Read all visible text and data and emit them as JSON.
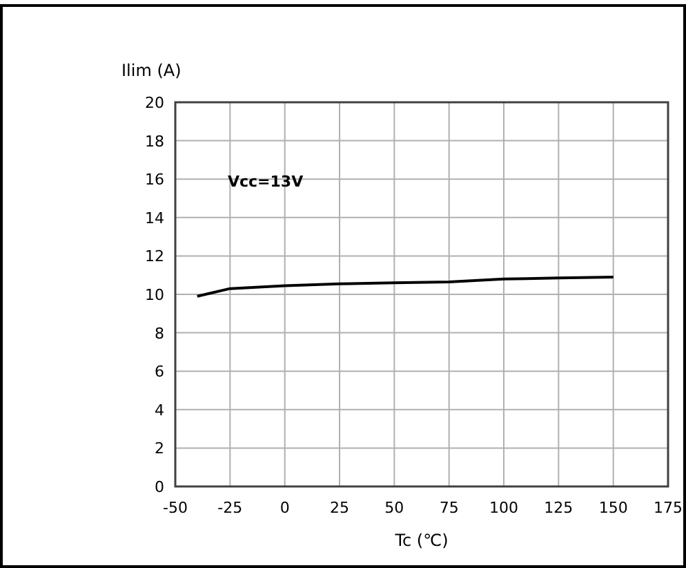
{
  "chart_data": {
    "type": "line",
    "xlabel": "Tc (℃)",
    "ylabel": "Ilim (A)",
    "annotations": [
      "Vcc=13V"
    ],
    "x": [
      -40,
      -25,
      0,
      25,
      50,
      75,
      100,
      125,
      150
    ],
    "series": [
      {
        "color": "#000000",
        "values": [
          9.9,
          10.3,
          10.45,
          10.55,
          10.6,
          10.65,
          10.8,
          10.85,
          10.9
        ]
      }
    ],
    "xlim": [
      -50,
      175
    ],
    "xticks": [
      -50,
      -25,
      0,
      25,
      50,
      75,
      100,
      125,
      150,
      175
    ],
    "ylim": [
      0,
      20
    ],
    "yticks": [
      0,
      2,
      4,
      6,
      8,
      10,
      12,
      14,
      16,
      18,
      20
    ],
    "grid": true,
    "marker": "none",
    "line_style": "solid"
  }
}
